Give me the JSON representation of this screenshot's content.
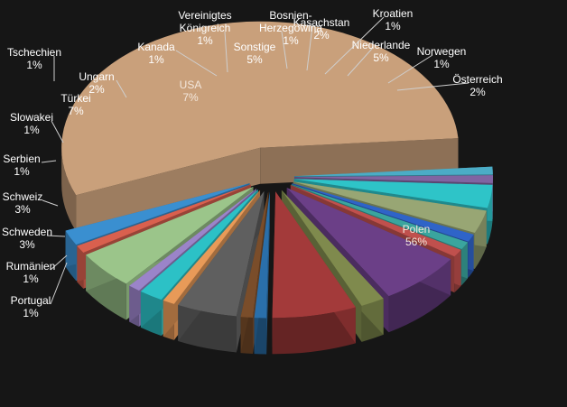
{
  "chart_data": {
    "type": "pie",
    "style": "3d-exploded",
    "title": "",
    "legend": "none",
    "slices": [
      {
        "label": "Polen",
        "pct": "56%",
        "value": 56,
        "color": "#c9a07b"
      },
      {
        "label": "Portugal",
        "pct": "1%",
        "value": 1,
        "color": "#4bacc6"
      },
      {
        "label": "Rumänien",
        "pct": "1%",
        "value": 1,
        "color": "#8064a2"
      },
      {
        "label": "Schweden",
        "pct": "3%",
        "value": 3,
        "color": "#2ec4c8"
      },
      {
        "label": "Schweiz",
        "pct": "3%",
        "value": 3,
        "color": "#98a674"
      },
      {
        "label": "Serbien",
        "pct": "1%",
        "value": 1,
        "color": "#2f64c8"
      },
      {
        "label": "Slowakei",
        "pct": "1%",
        "value": 1,
        "color": "#3aa59e"
      },
      {
        "label": "Tschechien",
        "pct": "1%",
        "value": 1,
        "color": "#c0504d"
      },
      {
        "label": "Türkei",
        "pct": "7%",
        "value": 7,
        "color": "#6b3f87"
      },
      {
        "label": "Ungarn",
        "pct": "2%",
        "value": 2,
        "color": "#7f8a4d"
      },
      {
        "label": "USA",
        "pct": "7%",
        "value": 7,
        "color": "#a33a3a"
      },
      {
        "label": "Kanada",
        "pct": "1%",
        "value": 1,
        "color": "#2a6faa"
      },
      {
        "label": "Vereinigtes Königreich",
        "pct": "1%",
        "value": 1,
        "color": "#7a4d2a"
      },
      {
        "label": "Sonstige",
        "pct": "5%",
        "value": 5,
        "color": "#5f5f5f"
      },
      {
        "label": "Bosnien-Herzegowina",
        "pct": "1%",
        "value": 1,
        "color": "#e89a58"
      },
      {
        "label": "Kasachstan",
        "pct": "2%",
        "value": 2,
        "color": "#2cc1c6"
      },
      {
        "label": "Kroatien",
        "pct": "1%",
        "value": 1,
        "color": "#9b84c9"
      },
      {
        "label": "Niederlande",
        "pct": "5%",
        "value": 5,
        "color": "#9bc58a"
      },
      {
        "label": "Norwegen",
        "pct": "1%",
        "value": 1,
        "color": "#d9604e"
      },
      {
        "label": "Österreich",
        "pct": "2%",
        "value": 2,
        "color": "#3a8fd0"
      }
    ]
  }
}
